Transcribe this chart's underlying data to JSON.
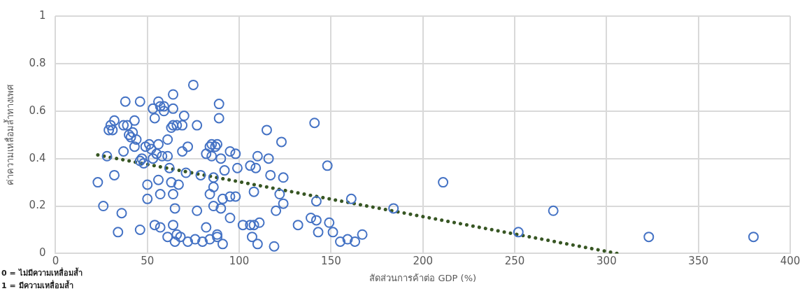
{
  "chart_data": {
    "type": "scatter",
    "xlabel": "สัดส่วนการค้าต่อ GDP (%)",
    "ylabel": "ค่าความเหลื่อมล้ำทางเพศ",
    "xlim": [
      0,
      400
    ],
    "xticks": [
      0,
      50,
      100,
      150,
      200,
      250,
      300,
      350,
      400
    ],
    "ylim": [
      0,
      1
    ],
    "yticks": [
      0,
      0.2,
      0.4,
      0.6,
      0.8,
      1
    ],
    "grid": true,
    "legend": false,
    "marker": "circle",
    "annotations": [
      "0 = ไม่มีความเหลื่อมล้ำ",
      "1 = มีความเหลื่อมล้ำ"
    ],
    "series": [
      {
        "type": "scatter",
        "color": "#4472c4",
        "x": [
          23,
          26,
          28,
          29,
          30,
          31,
          32,
          32,
          34,
          36,
          37,
          37,
          38,
          39,
          40,
          41,
          42,
          43,
          43,
          44,
          46,
          46,
          46,
          47,
          48,
          49,
          50,
          50,
          51,
          52,
          53,
          53,
          54,
          54,
          55,
          56,
          56,
          56,
          57,
          57,
          57,
          58,
          59,
          59,
          61,
          61,
          61,
          62,
          63,
          63,
          64,
          64,
          64,
          64,
          64,
          65,
          65,
          66,
          66,
          67,
          68,
          69,
          69,
          70,
          71,
          72,
          72,
          75,
          76,
          77,
          77,
          79,
          80,
          82,
          82,
          84,
          84,
          84,
          85,
          85,
          86,
          86,
          86,
          87,
          88,
          88,
          88,
          89,
          89,
          90,
          90,
          91,
          91,
          92,
          95,
          95,
          95,
          98,
          98,
          99,
          102,
          106,
          106,
          107,
          108,
          108,
          109,
          110,
          110,
          111,
          115,
          116,
          117,
          119,
          120,
          122,
          123,
          124,
          124,
          132,
          139,
          141,
          142,
          142,
          143,
          148,
          149,
          151,
          155,
          159,
          161,
          163,
          167,
          184,
          211,
          252,
          271,
          323,
          380
        ],
        "values": [
          0.3,
          0.2,
          0.41,
          0.52,
          0.54,
          0.52,
          0.56,
          0.33,
          0.09,
          0.17,
          0.43,
          0.54,
          0.64,
          0.54,
          0.5,
          0.49,
          0.51,
          0.45,
          0.56,
          0.48,
          0.39,
          0.64,
          0.1,
          0.4,
          0.38,
          0.45,
          0.29,
          0.23,
          0.46,
          0.44,
          0.61,
          0.4,
          0.12,
          0.57,
          0.42,
          0.64,
          0.46,
          0.31,
          0.62,
          0.25,
          0.11,
          0.41,
          0.62,
          0.6,
          0.48,
          0.41,
          0.07,
          0.36,
          0.53,
          0.3,
          0.67,
          0.61,
          0.54,
          0.12,
          0.25,
          0.05,
          0.19,
          0.54,
          0.08,
          0.29,
          0.07,
          0.43,
          0.54,
          0.58,
          0.34,
          0.45,
          0.05,
          0.71,
          0.06,
          0.18,
          0.54,
          0.33,
          0.05,
          0.42,
          0.11,
          0.45,
          0.25,
          0.06,
          0.46,
          0.41,
          0.32,
          0.28,
          0.2,
          0.45,
          0.46,
          0.08,
          0.07,
          0.57,
          0.63,
          0.4,
          0.19,
          0.23,
          0.04,
          0.35,
          0.43,
          0.24,
          0.15,
          0.42,
          0.24,
          0.36,
          0.12,
          0.37,
          0.12,
          0.07,
          0.26,
          0.12,
          0.36,
          0.41,
          0.04,
          0.13,
          0.52,
          0.4,
          0.33,
          0.03,
          0.18,
          0.25,
          0.47,
          0.32,
          0.21,
          0.12,
          0.15,
          0.55,
          0.14,
          0.22,
          0.09,
          0.37,
          0.13,
          0.09,
          0.05,
          0.06,
          0.23,
          0.05,
          0.08,
          0.19,
          0.3,
          0.09,
          0.18,
          0.07,
          0.07
        ]
      },
      {
        "type": "line",
        "color": "#375623",
        "line_style": "dotted",
        "marker": "none",
        "x": [
          23,
          306
        ],
        "values": [
          0.415,
          0
        ]
      }
    ]
  }
}
